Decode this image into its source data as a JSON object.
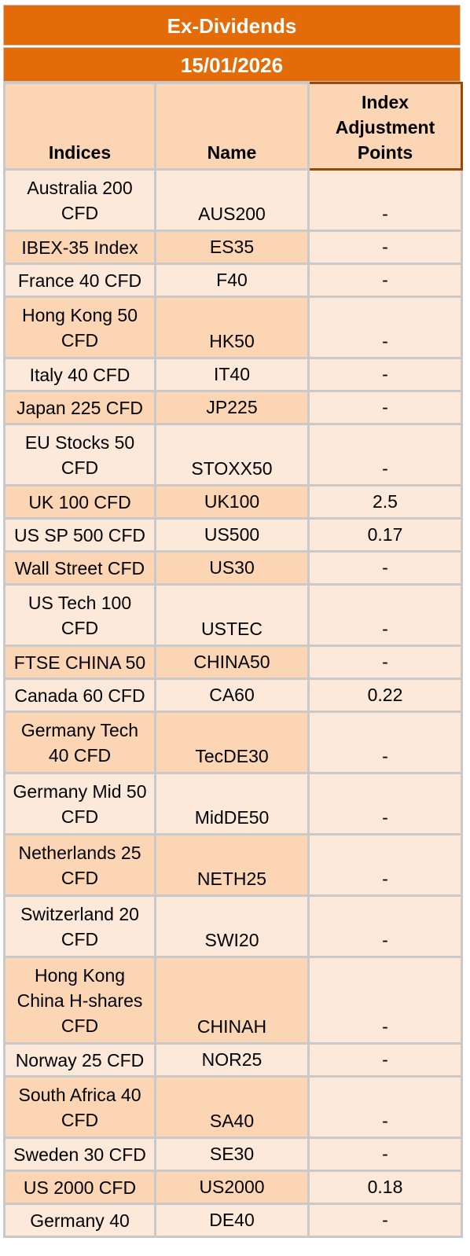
{
  "title": "Ex-Dividends",
  "date": "15/01/2026",
  "headers": {
    "indices": "Indices",
    "name": "Name",
    "adjustment": "Index Adjustment Points"
  },
  "rows": [
    {
      "index": "Australia 200 CFD",
      "name": "AUS200",
      "points": "-"
    },
    {
      "index": "IBEX-35 Index",
      "name": "ES35",
      "points": "-"
    },
    {
      "index": "France 40 CFD",
      "name": "F40",
      "points": "-"
    },
    {
      "index": "Hong Kong 50 CFD",
      "name": "HK50",
      "points": "-"
    },
    {
      "index": "Italy 40 CFD",
      "name": "IT40",
      "points": "-"
    },
    {
      "index": "Japan 225 CFD",
      "name": "JP225",
      "points": "-"
    },
    {
      "index": "EU Stocks 50 CFD",
      "name": "STOXX50",
      "points": "-"
    },
    {
      "index": "UK 100 CFD",
      "name": "UK100",
      "points": "2.5"
    },
    {
      "index": "US SP 500 CFD",
      "name": "US500",
      "points": "0.17"
    },
    {
      "index": "Wall Street CFD",
      "name": "US30",
      "points": "-"
    },
    {
      "index": "US Tech 100 CFD",
      "name": "USTEC",
      "points": "-"
    },
    {
      "index": "FTSE CHINA 50",
      "name": "CHINA50",
      "points": "-"
    },
    {
      "index": "Canada 60 CFD",
      "name": "CA60",
      "points": "0.22"
    },
    {
      "index": "Germany Tech 40 CFD",
      "name": "TecDE30",
      "points": "-"
    },
    {
      "index": "Germany Mid 50 CFD",
      "name": "MidDE50",
      "points": "-"
    },
    {
      "index": "Netherlands 25 CFD",
      "name": "NETH25",
      "points": "-"
    },
    {
      "index": "Switzerland 20 CFD",
      "name": "SWI20",
      "points": "-"
    },
    {
      "index": "Hong Kong China H-shares CFD",
      "name": "CHINAH",
      "points": "-"
    },
    {
      "index": "Norway 25 CFD",
      "name": "NOR25",
      "points": "-"
    },
    {
      "index": "South Africa 40 CFD",
      "name": "SA40",
      "points": "-"
    },
    {
      "index": "Sweden 30 CFD",
      "name": "SE30",
      "points": "-"
    },
    {
      "index": "US 2000 CFD",
      "name": "US2000",
      "points": "0.18"
    },
    {
      "index": "Germany 40",
      "name": "DE40",
      "points": "-"
    }
  ]
}
